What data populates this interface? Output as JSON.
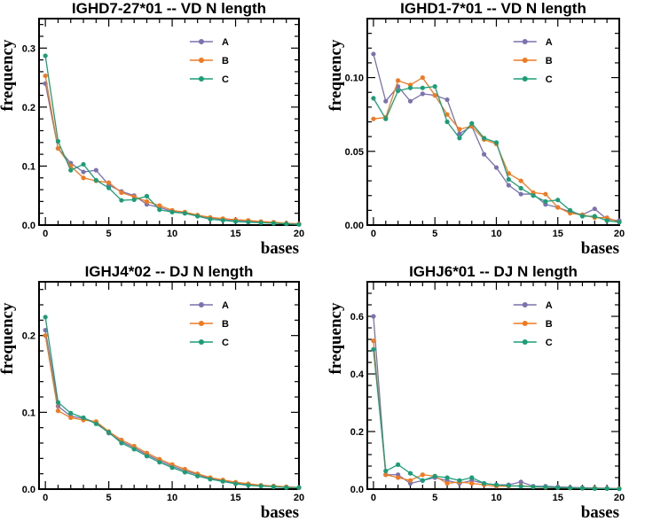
{
  "colors": {
    "A": "#7b72b0",
    "B": "#f07a22",
    "C": "#1b9e77",
    "axis": "#000000"
  },
  "chart_data": [
    {
      "type": "line",
      "title": "IGHD7-27*01 -- VD N length",
      "xlabel": "bases",
      "ylabel": "frequency",
      "xlim": [
        -0.5,
        20
      ],
      "ylim": [
        0,
        0.35
      ],
      "xticks": [
        0,
        5,
        10,
        15,
        20
      ],
      "yticks": [
        0,
        0.1,
        0.2,
        0.3
      ],
      "ytick_labels": [
        "0.0",
        "0.1",
        "0.2",
        "0.3"
      ],
      "x": [
        0,
        1,
        2,
        3,
        4,
        5,
        6,
        7,
        8,
        9,
        10,
        11,
        12,
        13,
        14,
        15,
        16,
        17,
        18,
        19,
        20
      ],
      "series": [
        {
          "name": "A",
          "values": [
            0.24,
            0.13,
            0.105,
            0.09,
            0.093,
            0.068,
            0.057,
            0.05,
            0.035,
            0.03,
            0.023,
            0.02,
            0.016,
            0.012,
            0.01,
            0.008,
            0.007,
            0.005,
            0.004,
            0.003,
            0.002
          ]
        },
        {
          "name": "B",
          "values": [
            0.253,
            0.13,
            0.1,
            0.08,
            0.075,
            0.072,
            0.055,
            0.048,
            0.04,
            0.033,
            0.025,
            0.022,
            0.017,
            0.013,
            0.011,
            0.009,
            0.008,
            0.006,
            0.005,
            0.003,
            0.002
          ]
        },
        {
          "name": "C",
          "values": [
            0.287,
            0.142,
            0.093,
            0.103,
            0.076,
            0.063,
            0.042,
            0.043,
            0.049,
            0.026,
            0.022,
            0.02,
            0.015,
            0.01,
            0.008,
            0.006,
            0.005,
            0.004,
            0.003,
            0.002,
            0.001
          ]
        }
      ]
    },
    {
      "type": "line",
      "title": "IGHD1-7*01 -- VD N length",
      "xlabel": "bases",
      "ylabel": "frequency",
      "xlim": [
        -0.5,
        20
      ],
      "ylim": [
        0,
        0.14
      ],
      "xticks": [
        0,
        5,
        10,
        15,
        20
      ],
      "yticks": [
        0,
        0.05,
        0.1
      ],
      "ytick_labels": [
        "0.00",
        "0.05",
        "0.10"
      ],
      "x": [
        0,
        1,
        2,
        3,
        4,
        5,
        6,
        7,
        8,
        9,
        10,
        11,
        12,
        13,
        14,
        15,
        16,
        17,
        18,
        19,
        20
      ],
      "series": [
        {
          "name": "A",
          "values": [
            0.116,
            0.084,
            0.094,
            0.084,
            0.089,
            0.088,
            0.085,
            0.062,
            0.067,
            0.048,
            0.039,
            0.027,
            0.021,
            0.021,
            0.014,
            0.012,
            0.009,
            0.007,
            0.011,
            0.004,
            0.003
          ]
        },
        {
          "name": "B",
          "values": [
            0.072,
            0.073,
            0.098,
            0.095,
            0.1,
            0.088,
            0.075,
            0.065,
            0.067,
            0.058,
            0.055,
            0.035,
            0.03,
            0.022,
            0.021,
            0.012,
            0.008,
            0.007,
            0.005,
            0.005,
            0.002
          ]
        },
        {
          "name": "C",
          "values": [
            0.086,
            0.072,
            0.091,
            0.093,
            0.093,
            0.094,
            0.07,
            0.059,
            0.069,
            0.059,
            0.056,
            0.031,
            0.025,
            0.02,
            0.016,
            0.017,
            0.01,
            0.006,
            0.006,
            0.003,
            0.002
          ]
        }
      ]
    },
    {
      "type": "line",
      "title": "IGHJ4*02 -- DJ N length",
      "xlabel": "bases",
      "ylabel": "frequency",
      "xlim": [
        -0.5,
        20
      ],
      "ylim": [
        0,
        0.27
      ],
      "xticks": [
        0,
        5,
        10,
        15,
        20
      ],
      "yticks": [
        0,
        0.1,
        0.2
      ],
      "ytick_labels": [
        "0.0",
        "0.1",
        "0.2"
      ],
      "x": [
        0,
        1,
        2,
        3,
        4,
        5,
        6,
        7,
        8,
        9,
        10,
        11,
        12,
        13,
        14,
        15,
        16,
        17,
        18,
        19,
        20
      ],
      "series": [
        {
          "name": "A",
          "values": [
            0.207,
            0.108,
            0.095,
            0.092,
            0.087,
            0.073,
            0.062,
            0.054,
            0.045,
            0.037,
            0.03,
            0.024,
            0.019,
            0.014,
            0.011,
            0.008,
            0.006,
            0.005,
            0.004,
            0.003,
            0.002
          ]
        },
        {
          "name": "B",
          "values": [
            0.2,
            0.102,
            0.093,
            0.09,
            0.088,
            0.075,
            0.064,
            0.056,
            0.047,
            0.039,
            0.032,
            0.026,
            0.02,
            0.015,
            0.012,
            0.009,
            0.007,
            0.005,
            0.004,
            0.003,
            0.002
          ]
        },
        {
          "name": "C",
          "values": [
            0.224,
            0.113,
            0.099,
            0.093,
            0.085,
            0.074,
            0.06,
            0.052,
            0.043,
            0.035,
            0.028,
            0.022,
            0.017,
            0.013,
            0.01,
            0.007,
            0.005,
            0.004,
            0.003,
            0.002,
            0.002
          ]
        }
      ]
    },
    {
      "type": "line",
      "title": "IGHJ6*01 -- DJ N length",
      "xlabel": "bases",
      "ylabel": "frequency",
      "xlim": [
        -0.5,
        20
      ],
      "ylim": [
        0,
        0.72
      ],
      "xticks": [
        0,
        5,
        10,
        15,
        20
      ],
      "yticks": [
        0,
        0.2,
        0.4,
        0.6
      ],
      "ytick_labels": [
        "0.0",
        "0.2",
        "0.4",
        "0.6"
      ],
      "x": [
        0,
        1,
        2,
        3,
        4,
        5,
        6,
        7,
        8,
        9,
        10,
        11,
        12,
        13,
        14,
        15,
        16,
        17,
        18,
        19,
        20
      ],
      "series": [
        {
          "name": "A",
          "values": [
            0.6,
            0.05,
            0.05,
            0.02,
            0.03,
            0.04,
            0.03,
            0.02,
            0.03,
            0.02,
            0.015,
            0.015,
            0.025,
            0.01,
            0.01,
            0.008,
            0.006,
            0.005,
            0.004,
            0.003,
            0.002
          ]
        },
        {
          "name": "B",
          "values": [
            0.515,
            0.05,
            0.04,
            0.03,
            0.05,
            0.045,
            0.02,
            0.025,
            0.02,
            0.015,
            0.01,
            0.01,
            0.012,
            0.008,
            0.006,
            0.005,
            0.004,
            0.003,
            0.003,
            0.002,
            0.002
          ]
        },
        {
          "name": "C",
          "values": [
            0.485,
            0.063,
            0.085,
            0.055,
            0.03,
            0.045,
            0.04,
            0.03,
            0.04,
            0.02,
            0.015,
            0.012,
            0.01,
            0.008,
            0.007,
            0.005,
            0.004,
            0.003,
            0.002,
            0.002,
            0.001
          ]
        }
      ]
    }
  ]
}
